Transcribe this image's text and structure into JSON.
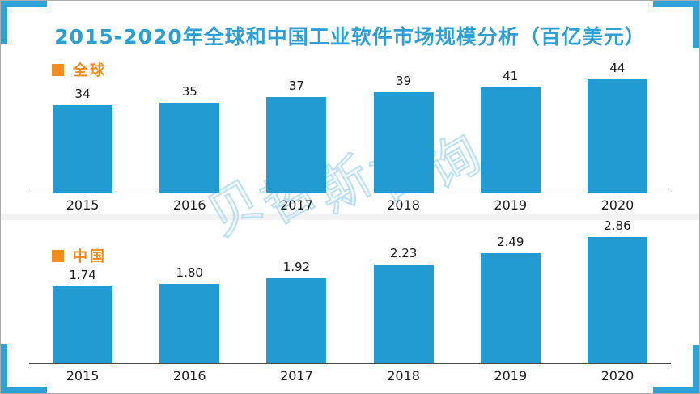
{
  "title": "2015-2020年全球和中国工业软件市场规模分析（百亿美元）",
  "watermark_text": "贝哲斯咨询",
  "colors": {
    "bar": "#219BD1",
    "corner_accent": "#2FA3D8",
    "title": "#2C9FD3",
    "legend_text": "#F28B20",
    "axis": "#4a4a4a",
    "watermark_stroke": "#B9DFF4"
  },
  "chart_data": [
    {
      "type": "bar",
      "legend": "全球",
      "categories": [
        "2015",
        "2016",
        "2017",
        "2018",
        "2019",
        "2020"
      ],
      "values": [
        34,
        35,
        37,
        39,
        41,
        44
      ],
      "value_labels": [
        "34",
        "35",
        "37",
        "39",
        "41",
        "44"
      ],
      "ylim": [
        0,
        44
      ],
      "grid": false,
      "legend_position": "top-left",
      "data_labels": "above-bars"
    },
    {
      "type": "bar",
      "legend": "中国",
      "categories": [
        "2015",
        "2016",
        "2017",
        "2018",
        "2019",
        "2020"
      ],
      "values": [
        1.74,
        1.8,
        1.92,
        2.23,
        2.49,
        2.86
      ],
      "value_labels": [
        "1.74",
        "1.80",
        "1.92",
        "2.23",
        "2.49",
        "2.86"
      ],
      "ylim": [
        0,
        2.86
      ],
      "grid": false,
      "legend_position": "top-left",
      "data_labels": "above-bars"
    }
  ]
}
